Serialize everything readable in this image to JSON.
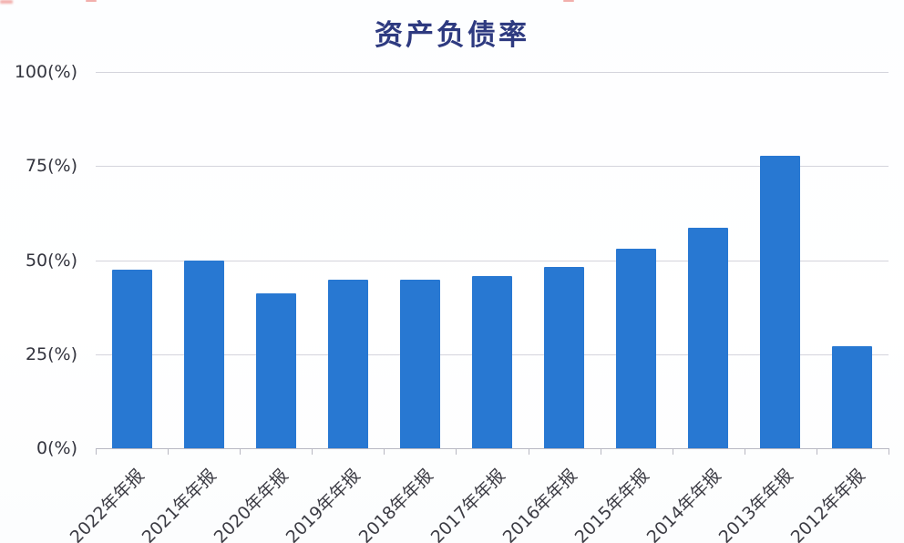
{
  "chart": {
    "title": "资产负债率",
    "bar_color": "#2878d2",
    "title_color": "#2e3a80"
  },
  "chart_data": {
    "type": "bar",
    "title": "资产负债率",
    "categories": [
      "2022年年报",
      "2021年年报",
      "2020年年报",
      "2019年年报",
      "2018年年报",
      "2017年年报",
      "2016年年报",
      "2015年年报",
      "2014年年报",
      "2013年年报",
      "2012年年报"
    ],
    "values": [
      47.5,
      50.0,
      41.2,
      44.8,
      44.8,
      45.8,
      48.2,
      53.0,
      58.6,
      77.7,
      27.1
    ],
    "y_ticks": [
      "100(%)",
      "75(%)",
      "50(%)",
      "25(%)",
      "0(%)"
    ],
    "xlabel": "",
    "ylabel": "(%)",
    "ylim": [
      0,
      100
    ],
    "grid": true,
    "legend_position": "none",
    "x_label_rotation": -45,
    "unit": "%"
  }
}
